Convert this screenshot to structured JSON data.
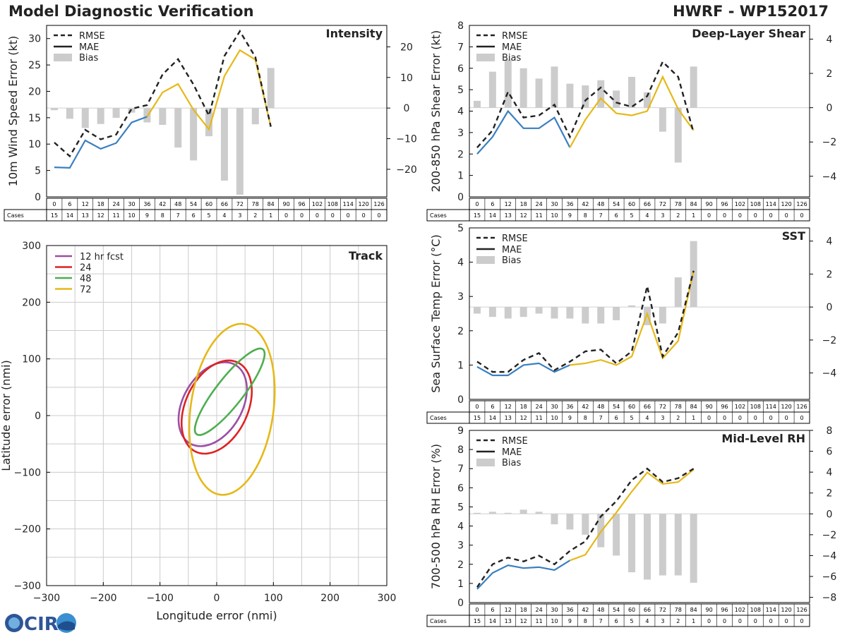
{
  "header": {
    "title_left": "Model Diagnostic Verification",
    "title_right": "HWRF - WP152017"
  },
  "logo": {
    "text": "CIRA",
    "colors": {
      "ring": "#2f5597",
      "accent": "#3a8fd0"
    }
  },
  "styles": {
    "rmse_color": "#222222",
    "mae_color": "#3a7fbf",
    "mae_after_color": "#e6b818",
    "bias_color": "#cccccc"
  },
  "cases": {
    "label": "Cases",
    "hours": [
      0,
      6,
      12,
      18,
      24,
      30,
      36,
      42,
      48,
      54,
      60,
      66,
      72,
      78,
      84,
      90,
      96,
      102,
      108,
      114,
      120,
      126
    ],
    "counts": [
      15,
      14,
      13,
      12,
      11,
      10,
      9,
      8,
      7,
      6,
      5,
      4,
      3,
      2,
      1,
      0,
      0,
      0,
      0,
      0,
      0,
      0
    ]
  },
  "chart_data": [
    {
      "id": "intensity",
      "type": "line",
      "title": "Intensity",
      "ylabel": "10m Wind Speed Error (kt)",
      "ylim": [
        0,
        32.5
      ],
      "yticks": [
        0,
        5,
        10,
        15,
        20,
        25,
        30
      ],
      "y2lim": [
        -29,
        27
      ],
      "y2ticks": [
        -20,
        -10,
        0,
        10,
        20
      ],
      "y2ticklabels": [
        "−20",
        "−10",
        "0",
        "10",
        "20"
      ],
      "legend": [
        "RMSE",
        "MAE",
        "Bias"
      ],
      "switch_hour": 36,
      "rmse": [
        10.3,
        7.7,
        12.7,
        10.9,
        11.8,
        16.7,
        17.4,
        23.2,
        26.1,
        21.3,
        15.4,
        26.7,
        31.4,
        26.5,
        13.3
      ],
      "mae": [
        5.6,
        5.5,
        10.7,
        9.1,
        10.2,
        14.1,
        15.2,
        19.8,
        21.4,
        16.5,
        12.8,
        22.9,
        27.8,
        26.0,
        13.3
      ],
      "bias": [
        -0.7,
        -3.5,
        -6.5,
        -5.2,
        -3.2,
        -1.5,
        -4.7,
        -5.5,
        -12.9,
        -17.1,
        -9.2,
        -23.7,
        -28.3,
        -5.3,
        13.1
      ]
    },
    {
      "id": "shear",
      "type": "line",
      "title": "Deep-Layer Shear",
      "ylabel": "200-850 hPa Shear Error (kt)",
      "ylim": [
        0,
        8
      ],
      "yticks": [
        0,
        1,
        2,
        3,
        4,
        5,
        6,
        7,
        8
      ],
      "y2lim": [
        -5.2,
        4.8
      ],
      "y2ticks": [
        -4,
        -2,
        0,
        2,
        4
      ],
      "y2ticklabels": [
        "−4",
        "−2",
        "0",
        "2",
        "4"
      ],
      "legend": [
        "RMSE",
        "MAE",
        "Bias"
      ],
      "switch_hour": 36,
      "rmse": [
        2.3,
        3.1,
        4.9,
        3.7,
        3.8,
        4.3,
        2.8,
        4.5,
        5.1,
        4.4,
        4.2,
        4.7,
        6.3,
        5.6,
        3.0
      ],
      "mae": [
        2.0,
        2.8,
        4.0,
        3.2,
        3.2,
        3.7,
        2.3,
        3.6,
        4.6,
        3.9,
        3.8,
        4.0,
        5.6,
        4.1,
        3.1
      ],
      "bias": [
        0.4,
        2.1,
        2.8,
        2.3,
        1.7,
        2.4,
        1.4,
        1.3,
        1.6,
        1.0,
        1.8,
        0.9,
        -1.4,
        -3.2,
        2.4
      ]
    },
    {
      "id": "sst",
      "type": "line",
      "title": "SST",
      "ylabel": "Sea Surface Temp Error (°C)",
      "ylim": [
        0,
        5
      ],
      "yticks": [
        0,
        1,
        2,
        3,
        4,
        5
      ],
      "y2lim": [
        -5.6,
        4.8
      ],
      "y2ticks": [
        -4,
        -2,
        0,
        2,
        4
      ],
      "y2ticklabels": [
        "−4",
        "−2",
        "0",
        "2",
        "4"
      ],
      "legend": [
        "RMSE",
        "MAE",
        "Bias"
      ],
      "switch_hour": 36,
      "rmse": [
        1.1,
        0.8,
        0.8,
        1.15,
        1.35,
        0.85,
        1.1,
        1.4,
        1.45,
        1.05,
        1.4,
        3.3,
        1.25,
        1.95,
        3.75
      ],
      "mae": [
        0.95,
        0.7,
        0.7,
        1.0,
        1.05,
        0.8,
        1.0,
        1.05,
        1.15,
        1.0,
        1.25,
        2.5,
        1.2,
        1.7,
        3.75
      ],
      "bias": [
        -0.4,
        -0.6,
        -0.7,
        -0.6,
        -0.4,
        -0.7,
        -0.7,
        -1.0,
        -1.0,
        -0.8,
        0.1,
        -1.1,
        -1.0,
        1.8,
        4.0
      ]
    },
    {
      "id": "rh",
      "type": "line",
      "title": "Mid-Level RH",
      "ylabel": "700-500 hPa RH Error (%)",
      "ylim": [
        0,
        9
      ],
      "yticks": [
        0,
        1,
        2,
        3,
        4,
        5,
        6,
        7,
        8,
        9
      ],
      "y2lim": [
        -8.5,
        8
      ],
      "y2ticks": [
        -8,
        -6,
        -4,
        -2,
        0,
        2,
        4,
        6,
        8
      ],
      "y2ticklabels": [
        "−8",
        "−6",
        "−4",
        "−2",
        "0",
        "2",
        "4",
        "6",
        "8"
      ],
      "legend": [
        "RMSE",
        "MAE",
        "Bias"
      ],
      "switch_hour": 36,
      "rmse": [
        0.8,
        2.0,
        2.35,
        2.15,
        2.45,
        2.0,
        2.7,
        3.2,
        4.5,
        5.3,
        6.4,
        7.0,
        6.3,
        6.5,
        7.0
      ],
      "mae": [
        0.7,
        1.55,
        1.95,
        1.8,
        1.85,
        1.7,
        2.2,
        2.5,
        3.7,
        4.7,
        5.8,
        6.8,
        6.2,
        6.3,
        6.95
      ],
      "bias": [
        0.1,
        0.2,
        0.1,
        0.4,
        0.2,
        -1.0,
        -1.5,
        -2.0,
        -3.2,
        -4.0,
        -5.6,
        -6.3,
        -5.9,
        -5.9,
        -6.6
      ]
    },
    {
      "id": "track",
      "type": "scatter",
      "title": "Track",
      "xlabel": "Longitude error (nmi)",
      "ylabel": "Latitude error (nmi)",
      "xlim": [
        -300,
        300
      ],
      "ylim": [
        -300,
        300
      ],
      "xticks": [
        -300,
        -200,
        -100,
        0,
        100,
        200,
        300
      ],
      "xticklabels": [
        "−300",
        "−200",
        "−100",
        "0",
        "100",
        "200",
        "300"
      ],
      "yticks": [
        -300,
        -200,
        -100,
        0,
        100,
        200,
        300
      ],
      "yticklabels": [
        "−300",
        "−200",
        "−100",
        "0",
        "100",
        "200",
        "300"
      ],
      "grid": true,
      "ellipses": [
        {
          "label": "12 hr fcst",
          "color": "#9b4fa6",
          "cx": -7,
          "cy": 20,
          "rx": 52,
          "ry": 80,
          "angle": 30
        },
        {
          "label": "24",
          "color": "#dd2222",
          "cx": 0,
          "cy": 15,
          "rx": 55,
          "ry": 87,
          "angle": 25
        },
        {
          "label": "48",
          "color": "#4fae4f",
          "cx": 23,
          "cy": 42,
          "rx": 24,
          "ry": 95,
          "angle": 38
        },
        {
          "label": "72",
          "color": "#e6b818",
          "cx": 27,
          "cy": 11,
          "rx": 73,
          "ry": 152,
          "angle": 8
        }
      ]
    }
  ]
}
